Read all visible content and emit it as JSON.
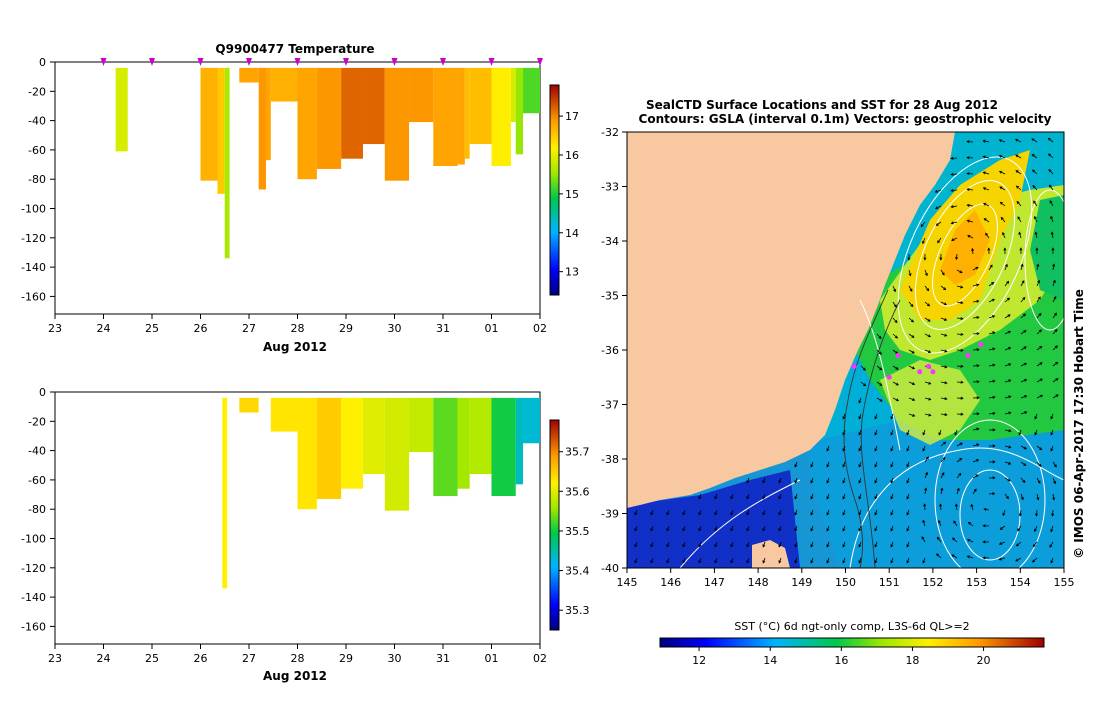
{
  "chart_data": [
    {
      "type": "heatmap",
      "title": "Q9900477  Temperature",
      "xlabel": "Aug 2012",
      "x_tick_labels": [
        "23",
        "24",
        "25",
        "26",
        "27",
        "28",
        "29",
        "30",
        "31",
        "01",
        "02"
      ],
      "y_tick_labels": [
        "0",
        "-20",
        "-40",
        "-60",
        "-80",
        "-100",
        "-120",
        "-140",
        "-160"
      ],
      "ylim": [
        -172,
        0
      ],
      "colorbar_labels": [
        "17",
        "16",
        "15",
        "14",
        "13"
      ],
      "colorbar_range": [
        12.4,
        17.8
      ],
      "profile_markers_day": [
        24,
        25,
        26,
        27,
        28,
        29,
        30,
        31,
        32,
        33
      ],
      "profiles": [
        {
          "t0": 24.25,
          "t1": 24.5,
          "top": -4,
          "bottom": -61,
          "value": 15.9
        },
        {
          "t0": 26.0,
          "t1": 26.35,
          "top": -4,
          "bottom": -81,
          "value": 16.7
        },
        {
          "t0": 26.35,
          "t1": 26.5,
          "top": -4,
          "bottom": -90,
          "value": 16.5
        },
        {
          "t0": 26.5,
          "t1": 26.6,
          "top": -4,
          "bottom": -134,
          "value": 15.6
        },
        {
          "t0": 26.8,
          "t1": 27.2,
          "top": -4,
          "bottom": -14,
          "value": 16.8
        },
        {
          "t0": 27.2,
          "t1": 27.35,
          "top": -4,
          "bottom": -87,
          "value": 16.9
        },
        {
          "t0": 27.35,
          "t1": 27.45,
          "top": -4,
          "bottom": -67,
          "value": 16.8
        },
        {
          "t0": 27.45,
          "t1": 28.0,
          "top": -4,
          "bottom": -27,
          "value": 16.7
        },
        {
          "t0": 28.0,
          "t1": 28.4,
          "top": -4,
          "bottom": -80,
          "value": 16.8
        },
        {
          "t0": 28.4,
          "t1": 28.9,
          "top": -4,
          "bottom": -73,
          "value": 16.9
        },
        {
          "t0": 28.9,
          "t1": 29.35,
          "top": -4,
          "bottom": -66,
          "value": 17.2
        },
        {
          "t0": 29.35,
          "t1": 29.8,
          "top": -4,
          "bottom": -56,
          "value": 17.2
        },
        {
          "t0": 29.8,
          "t1": 30.3,
          "top": -4,
          "bottom": -81,
          "value": 16.9
        },
        {
          "t0": 30.3,
          "t1": 30.8,
          "top": -4,
          "bottom": -41,
          "value": 16.9
        },
        {
          "t0": 30.8,
          "t1": 31.3,
          "top": -4,
          "bottom": -71,
          "value": 16.8
        },
        {
          "t0": 31.3,
          "t1": 31.45,
          "top": -4,
          "bottom": -70,
          "value": 16.8
        },
        {
          "t0": 31.45,
          "t1": 31.55,
          "top": -4,
          "bottom": -66,
          "value": 16.6
        },
        {
          "t0": 31.55,
          "t1": 32.0,
          "top": -4,
          "bottom": -56,
          "value": 16.6
        },
        {
          "t0": 32.0,
          "t1": 32.4,
          "top": -4,
          "bottom": -71,
          "value": 16.2
        },
        {
          "t0": 32.4,
          "t1": 32.5,
          "top": -4,
          "bottom": -41,
          "value": 15.9
        },
        {
          "t0": 32.5,
          "t1": 32.65,
          "top": -4,
          "bottom": -63,
          "value": 15.5
        },
        {
          "t0": 32.65,
          "t1": 33.0,
          "top": -4,
          "bottom": -35,
          "value": 15.2
        }
      ]
    },
    {
      "type": "heatmap",
      "title": "",
      "xlabel": "Aug 2012",
      "x_tick_labels": [
        "23",
        "24",
        "25",
        "26",
        "27",
        "28",
        "29",
        "30",
        "31",
        "01",
        "02"
      ],
      "y_tick_labels": [
        "0",
        "-20",
        "-40",
        "-60",
        "-80",
        "-100",
        "-120",
        "-140",
        "-160"
      ],
      "ylim": [
        -172,
        0
      ],
      "colorbar_labels": [
        "35.7",
        "35.6",
        "35.5",
        "35.4",
        "35.3"
      ],
      "colorbar_range": [
        35.25,
        35.78
      ],
      "profiles": [
        {
          "t0": 26.45,
          "t1": 26.55,
          "top": -4,
          "bottom": -134,
          "value": 35.62
        },
        {
          "t0": 26.8,
          "t1": 27.2,
          "top": -4,
          "bottom": -14,
          "value": 35.64
        },
        {
          "t0": 27.45,
          "t1": 28.0,
          "top": -4,
          "bottom": -27,
          "value": 35.63
        },
        {
          "t0": 28.0,
          "t1": 28.4,
          "top": -4,
          "bottom": -80,
          "value": 35.63
        },
        {
          "t0": 28.4,
          "t1": 28.9,
          "top": -4,
          "bottom": -73,
          "value": 35.65
        },
        {
          "t0": 28.9,
          "t1": 29.35,
          "top": -4,
          "bottom": -66,
          "value": 35.62
        },
        {
          "t0": 29.35,
          "t1": 29.8,
          "top": -4,
          "bottom": -56,
          "value": 35.6
        },
        {
          "t0": 29.8,
          "t1": 30.3,
          "top": -4,
          "bottom": -81,
          "value": 35.59
        },
        {
          "t0": 30.3,
          "t1": 30.8,
          "top": -4,
          "bottom": -41,
          "value": 35.58
        },
        {
          "t0": 30.8,
          "t1": 31.3,
          "top": -4,
          "bottom": -71,
          "value": 35.53
        },
        {
          "t0": 31.3,
          "t1": 31.55,
          "top": -4,
          "bottom": -66,
          "value": 35.56
        },
        {
          "t0": 31.55,
          "t1": 32.0,
          "top": -4,
          "bottom": -56,
          "value": 35.57
        },
        {
          "t0": 32.0,
          "t1": 32.5,
          "top": -4,
          "bottom": -71,
          "value": 35.5
        },
        {
          "t0": 32.5,
          "t1": 32.65,
          "top": -4,
          "bottom": -63,
          "value": 35.44
        },
        {
          "t0": 32.65,
          "t1": 33.0,
          "top": -4,
          "bottom": -35,
          "value": 35.43
        }
      ]
    },
    {
      "type": "heatmap",
      "title": "SealCTD Surface Locations and SST for 28 Aug 2012",
      "subtitle": "Contours: GSLA (interval 0.1m) Vectors: geostrophic velocity",
      "x_tick_labels": [
        "145",
        "146",
        "147",
        "148",
        "149",
        "150",
        "151",
        "152",
        "153",
        "154",
        "155"
      ],
      "y_tick_labels": [
        "-32",
        "-33",
        "-34",
        "-35",
        "-36",
        "-37",
        "-38",
        "-39",
        "-40"
      ],
      "xlim": [
        145,
        155
      ],
      "ylim": [
        -40,
        -32
      ],
      "colorbar_title": "SST (°C) 6d ngt-only comp, L3S-6d QL>=2",
      "colorbar_labels": [
        "12",
        "14",
        "16",
        "18",
        "20"
      ],
      "colorbar_range": [
        10.9,
        21.7
      ],
      "side_label": "© IMOS 06-Apr-2017 17:30 Hobart Time",
      "seal_surface_locations": [
        {
          "lon": 150.2,
          "lat": -36.3
        },
        {
          "lon": 151.0,
          "lat": -36.5
        },
        {
          "lon": 151.2,
          "lat": -36.1
        },
        {
          "lon": 151.7,
          "lat": -36.4
        },
        {
          "lon": 151.9,
          "lat": -36.3
        },
        {
          "lon": 152.0,
          "lat": -36.4
        },
        {
          "lon": 152.8,
          "lat": -36.1
        },
        {
          "lon": 153.1,
          "lat": -35.9
        }
      ]
    }
  ],
  "colors": {
    "land": "#f8c8a0",
    "profile_marker": "#cc00cc",
    "seal_marker": "#ff33ff",
    "contour": "#ffffff",
    "vector": "#000000"
  }
}
